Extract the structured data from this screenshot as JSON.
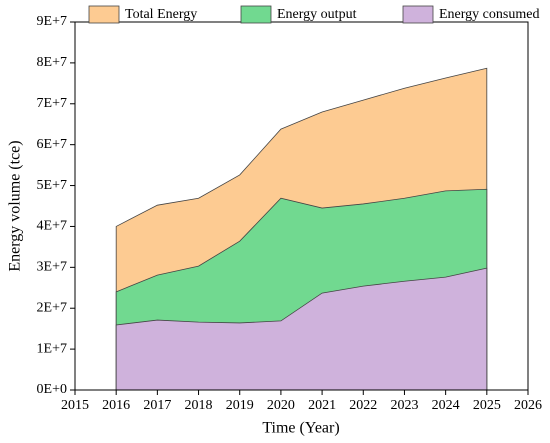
{
  "chart_data": {
    "type": "area",
    "x_label": "Time (Year)",
    "y_label": "Energy volume (tce)",
    "x": [
      2016,
      2017,
      2018,
      2019,
      2020,
      2021,
      2022,
      2023,
      2024,
      2025
    ],
    "series": [
      {
        "name": "Total Energy",
        "color": "#fdcb92",
        "values": [
          40000000,
          45200000,
          46900000,
          52600000,
          63800000,
          68000000,
          70900000,
          73800000,
          76300000,
          78700000
        ]
      },
      {
        "name": "Energy output",
        "color": "#71d990",
        "values": [
          24000000,
          28100000,
          30300000,
          36400000,
          46900000,
          44500000,
          45500000,
          46900000,
          48700000,
          49100000
        ]
      },
      {
        "name": "Energy consumed",
        "color": "#cfb2dc",
        "values": [
          15900000,
          17100000,
          16600000,
          16400000,
          16900000,
          23700000,
          25400000,
          26600000,
          27600000,
          29800000
        ]
      }
    ],
    "xlim": [
      2015,
      2026
    ],
    "xticks": [
      2015,
      2016,
      2017,
      2018,
      2019,
      2020,
      2021,
      2022,
      2023,
      2024,
      2025,
      2026
    ],
    "ylim": [
      0,
      90000000
    ],
    "yticks": [
      {
        "value": 0,
        "label": "0E+0"
      },
      {
        "value": 10000000,
        "label": "1E+7"
      },
      {
        "value": 20000000,
        "label": "2E+7"
      },
      {
        "value": 30000000,
        "label": "3E+7"
      },
      {
        "value": 40000000,
        "label": "4E+7"
      },
      {
        "value": 50000000,
        "label": "5E+7"
      },
      {
        "value": 60000000,
        "label": "6E+7"
      },
      {
        "value": 70000000,
        "label": "7E+7"
      },
      {
        "value": 80000000,
        "label": "8E+7"
      },
      {
        "value": 90000000,
        "label": "9E+7"
      }
    ],
    "legend": "top"
  }
}
